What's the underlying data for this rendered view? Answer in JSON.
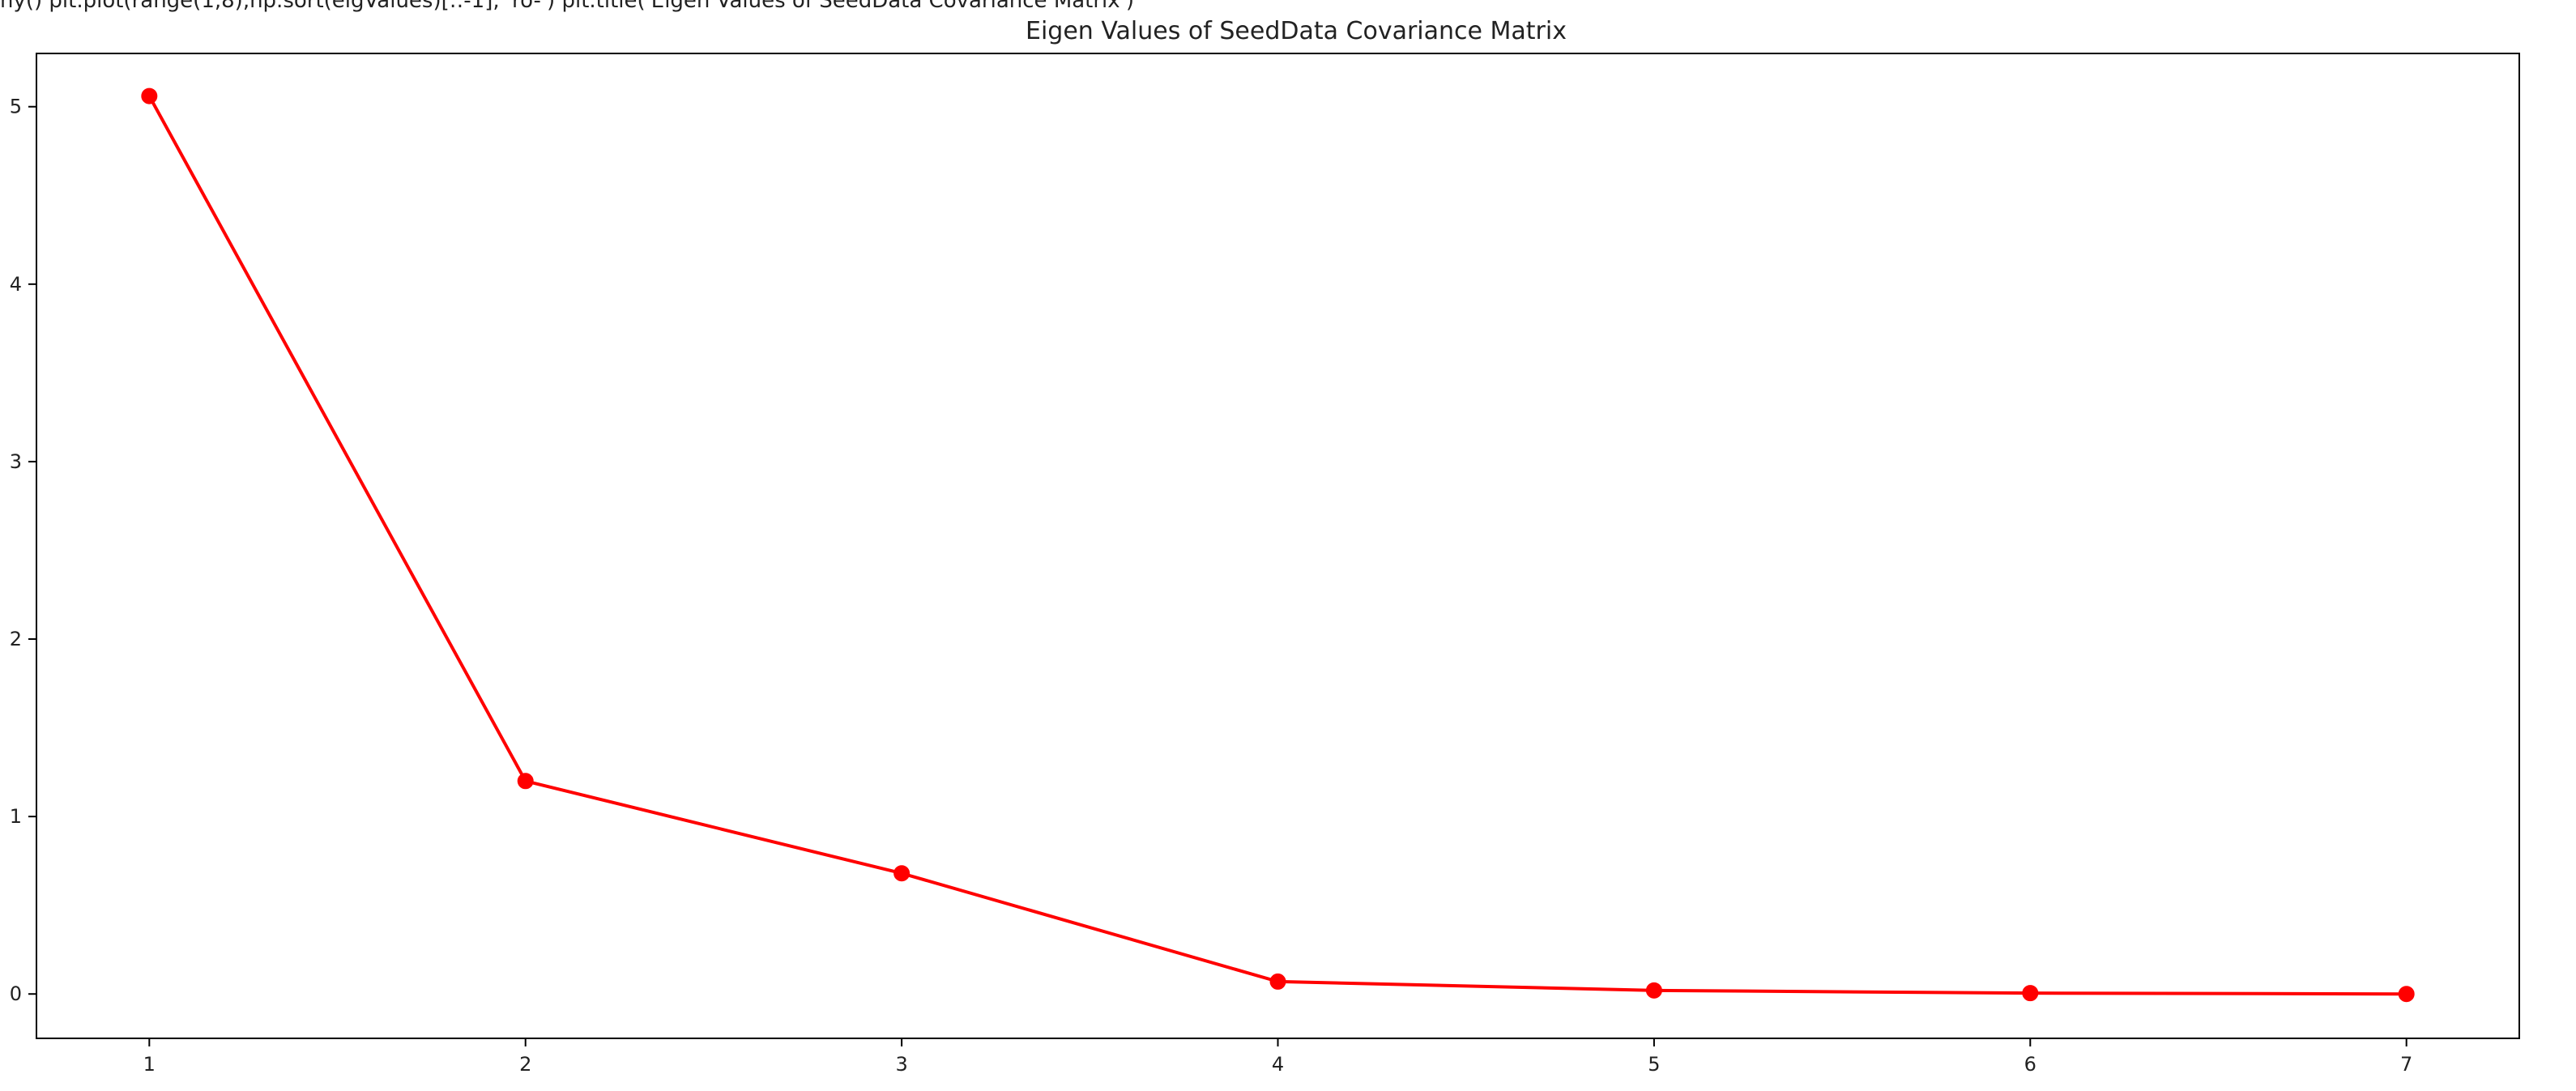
{
  "top_clip_text": "ny() plt.plot(range(1,8),np.sort(eigValues)[::-1], 'ro-') plt.title('Eigen Values of SeedData Covariance Matrix')",
  "chart_data": {
    "type": "line",
    "title": "Eigen Values of SeedData Covariance Matrix",
    "xlabel": "",
    "ylabel": "",
    "x": [
      1,
      2,
      3,
      4,
      5,
      6,
      7
    ],
    "series": [
      {
        "values": [
          5.06,
          1.2,
          0.68,
          0.07,
          0.02,
          0.005,
          0.0
        ],
        "color": "#ff0000",
        "marker": "circle",
        "line_style": "solid"
      }
    ],
    "xlim": [
      0.7,
      7.3
    ],
    "ylim": [
      -0.25,
      5.3
    ],
    "xticks": [
      "1",
      "2",
      "3",
      "4",
      "5",
      "6",
      "7"
    ],
    "yticks": [
      "0",
      "1",
      "2",
      "3",
      "4",
      "5"
    ],
    "grid": false,
    "legend": "none"
  }
}
